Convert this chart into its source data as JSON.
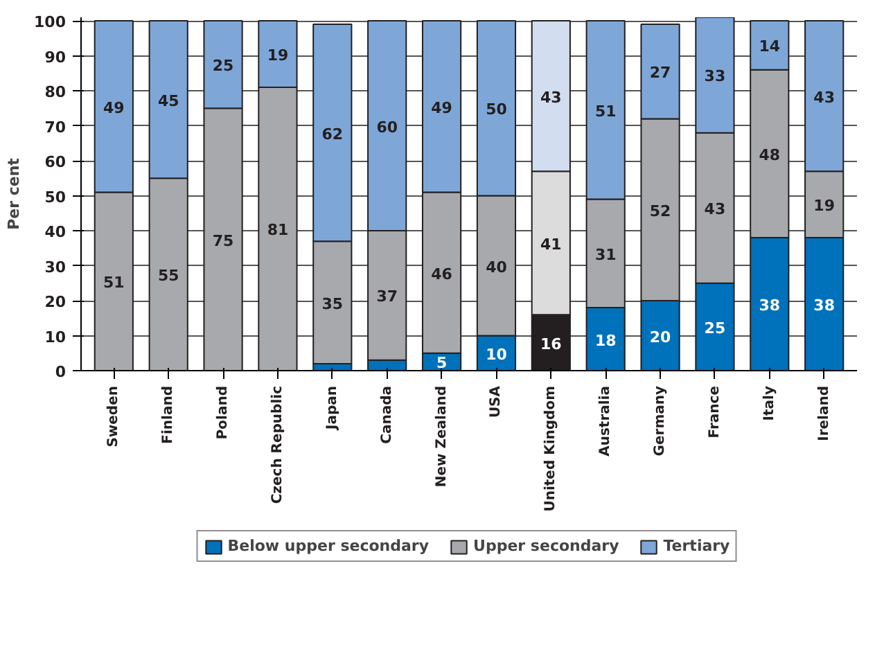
{
  "chart_data": {
    "type": "bar",
    "stacked": true,
    "ylabel": "Per cent",
    "categories": [
      "Sweden",
      "Finland",
      "Poland",
      "Czech Republic",
      "Japan",
      "Canada",
      "New Zealand",
      "USA",
      "United Kingdom",
      "Australia",
      "Germany",
      "France",
      "Italy",
      "Ireland"
    ],
    "series": [
      {
        "name": "Below upper secondary",
        "color": "#0071bb",
        "colors": [
          "#0071bb",
          "#0071bb",
          "#0071bb",
          "#0071bb",
          "#0071bb",
          "#0071bb",
          "#0071bb",
          "#0071bb",
          "#231f20",
          "#0071bb",
          "#0071bb",
          "#0071bb",
          "#0071bb",
          "#0071bb"
        ],
        "values": [
          0,
          0,
          0,
          0,
          2,
          3,
          5,
          10,
          16,
          18,
          20,
          25,
          38,
          38
        ],
        "value_labels": [
          null,
          null,
          null,
          null,
          null,
          null,
          "5",
          "10",
          "16",
          "18",
          "20",
          "25",
          "38",
          "38"
        ]
      },
      {
        "name": "Upper secondary",
        "color": "#a7a9ac",
        "colors": [
          "#a7a9ac",
          "#a7a9ac",
          "#a7a9ac",
          "#a7a9ac",
          "#a7a9ac",
          "#a7a9ac",
          "#a7a9ac",
          "#a7a9ac",
          "#dcdcdc",
          "#a7a9ac",
          "#a7a9ac",
          "#a7a9ac",
          "#a7a9ac",
          "#a7a9ac"
        ],
        "values": [
          51,
          55,
          75,
          81,
          35,
          37,
          46,
          40,
          41,
          31,
          52,
          43,
          48,
          19
        ],
        "value_labels": [
          "51",
          "55",
          "75",
          "81",
          "35",
          "37",
          "46",
          "40",
          "41",
          "31",
          "52",
          "43",
          "48",
          "19"
        ]
      },
      {
        "name": "Tertiary",
        "color": "#7ea7d8",
        "colors": [
          "#7ea7d8",
          "#7ea7d8",
          "#7ea7d8",
          "#7ea7d8",
          "#7ea7d8",
          "#7ea7d8",
          "#7ea7d8",
          "#7ea7d8",
          "#d2ddf0",
          "#7ea7d8",
          "#7ea7d8",
          "#7ea7d8",
          "#7ea7d8",
          "#7ea7d8"
        ],
        "values": [
          49,
          45,
          25,
          19,
          62,
          60,
          49,
          50,
          43,
          51,
          27,
          33,
          14,
          43
        ],
        "value_labels": [
          "49",
          "45",
          "25",
          "19",
          "62",
          "60",
          "49",
          "50",
          "43",
          "51",
          "27",
          "33",
          "14",
          "43"
        ]
      }
    ],
    "ylim": [
      0,
      101
    ],
    "yticks": [
      0,
      10,
      20,
      30,
      40,
      50,
      60,
      70,
      80,
      90,
      100
    ],
    "grid": "y",
    "legend": "bottom"
  }
}
